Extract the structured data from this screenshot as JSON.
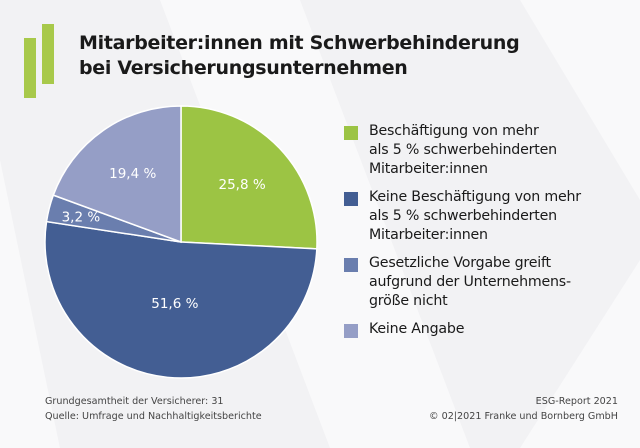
{
  "title": {
    "line1": "Mitarbeiter:innen mit Schwerbehinderung",
    "line2": "bei Versicherungsunternehmen"
  },
  "colors": {
    "green": "#9cc444",
    "dark_blue": "#435e93",
    "mid_blue": "#6a7eae",
    "light_blue": "#959ec6",
    "background": "#f2f2f4",
    "logo": "#a8c94a"
  },
  "chart_data": {
    "type": "pie",
    "start": "12 o'clock, clockwise",
    "slices": [
      {
        "name": "Beschäftigung von mehr\nals 5 % schwerbehinderten\nMitarbeiter:innen",
        "value": 25.8,
        "label": "25,8 %",
        "color": "#9cc444"
      },
      {
        "name": "Keine Beschäftigung von mehr\nals 5 % schwerbehinderten\nMitarbeiter:innen",
        "value": 51.6,
        "label": "51,6 %",
        "color": "#435e93"
      },
      {
        "name": "Gesetzliche Vorgabe greift\naufgrund der Unternehmens-\ngröße nicht",
        "value": 3.2,
        "label": "3,2 %",
        "color": "#6a7eae"
      },
      {
        "name": "Keine Angabe",
        "value": 19.4,
        "label": "19,4 %",
        "color": "#959ec6"
      }
    ],
    "legend": "right"
  },
  "footer": {
    "base": "Grundgesamtheit der Versicherer: 31",
    "source": "Quelle: Umfrage und Nachhaltigkeitsberichte",
    "report": "ESG-Report 2021",
    "copyright": "© 02|2021 Franke und Bornberg GmbH"
  }
}
